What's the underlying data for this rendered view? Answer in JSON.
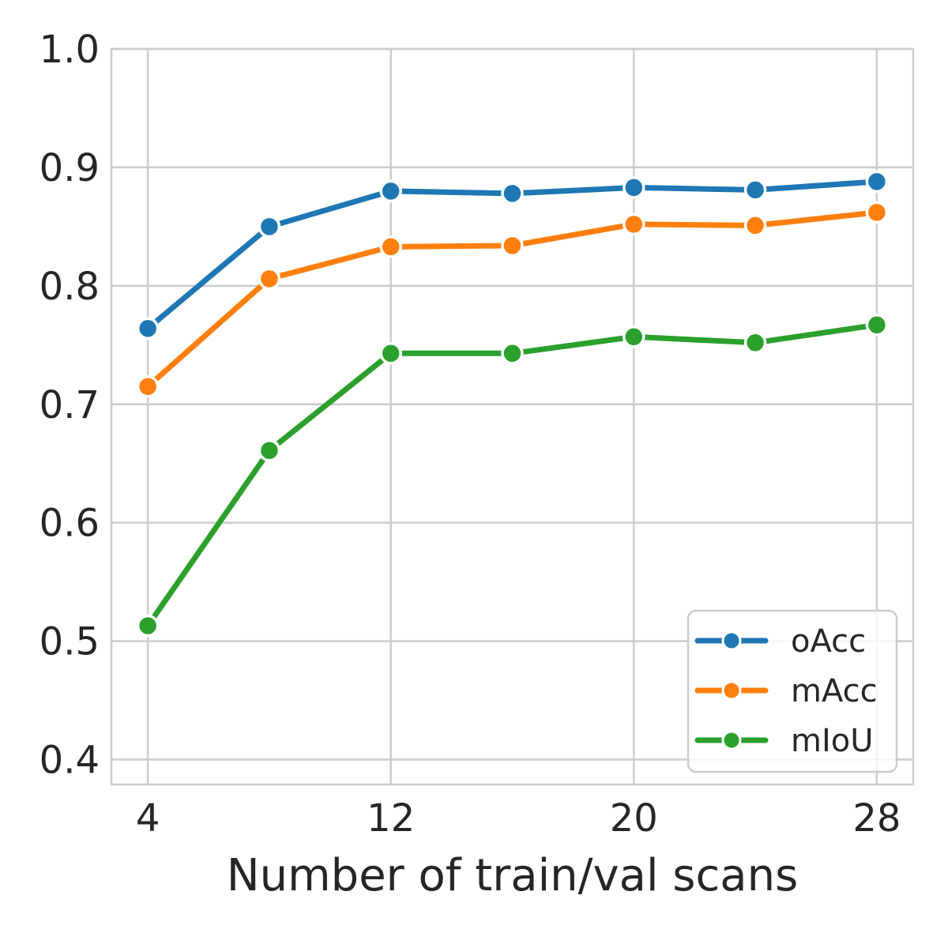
{
  "chart_data": {
    "type": "line",
    "title": "",
    "xlabel": "Number of train/val scans",
    "ylabel": "",
    "x": [
      4,
      8,
      12,
      16,
      20,
      24,
      28
    ],
    "series": [
      {
        "name": "oAcc",
        "color": "#1f77b4",
        "values": [
          0.764,
          0.85,
          0.88,
          0.878,
          0.883,
          0.881,
          0.888
        ]
      },
      {
        "name": "mAcc",
        "color": "#ff7f0e",
        "values": [
          0.715,
          0.806,
          0.833,
          0.834,
          0.852,
          0.851,
          0.862
        ]
      },
      {
        "name": "mIoU",
        "color": "#2ca02c",
        "values": [
          0.513,
          0.661,
          0.743,
          0.743,
          0.757,
          0.752,
          0.767
        ]
      }
    ],
    "xlim": [
      2.8,
      29.2
    ],
    "ylim": [
      0.379,
      1.0
    ],
    "x_ticks": [
      4,
      12,
      20,
      28
    ],
    "x_tick_labels": [
      "4",
      "12",
      "20",
      "28"
    ],
    "y_ticks": [
      0.4,
      0.5,
      0.6,
      0.7,
      0.8,
      0.9,
      1.0
    ],
    "y_tick_labels": [
      "0.4",
      "0.5",
      "0.6",
      "0.7",
      "0.8",
      "0.9",
      "1.0"
    ],
    "grid": true,
    "legend_position": "lower right",
    "legend": [
      "oAcc",
      "mAcc",
      "mIoU"
    ]
  },
  "style": {
    "background": "#ffffff",
    "grid_color": "#cccccc",
    "text_color": "#262626",
    "marker_edge_color": "#ffffff",
    "legend_bg": "#ffffff"
  }
}
